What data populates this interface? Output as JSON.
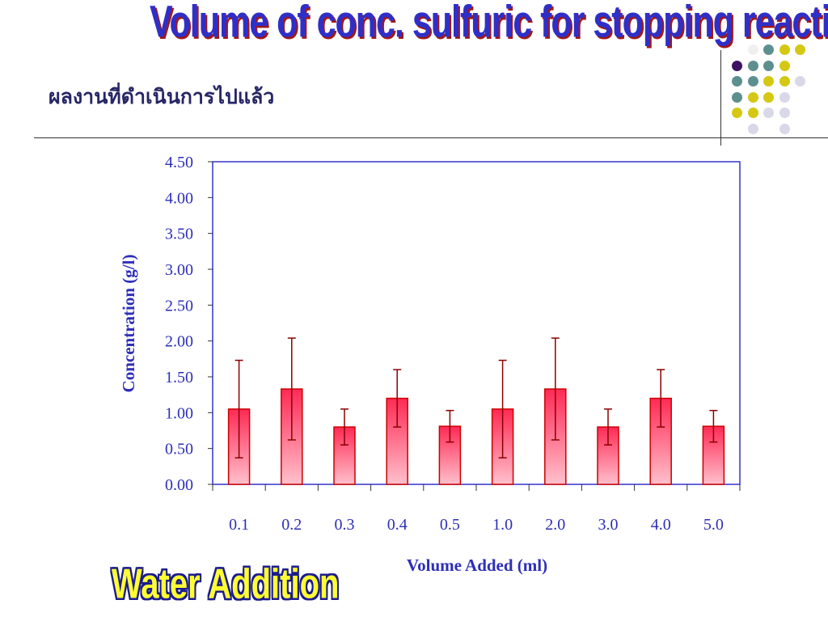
{
  "slide": {
    "title": "Volume of conc. sulfuric for stopping reaction",
    "subtitle": "ผลงานที่ดำเนินการไปแล้ว",
    "annotation": "Water Addition"
  },
  "colors": {
    "bar_fill_top": "#ff2a55",
    "bar_fill_bottom": "#ffc0cc",
    "bar_stroke": "#cc0000",
    "error_bar": "#8b0000",
    "axis_text": "#2e2eb8",
    "frame": "#3333cc",
    "title_text": "#2f2fc8",
    "title_shadow": "#a01818"
  },
  "decor_dots": [
    [
      null,
      "#f0f0f0",
      "#5e8f8f",
      "#d4c814",
      "#d4c814"
    ],
    [
      "#3d1260",
      "#5e8f8f",
      "#5e8f8f",
      "#d4c814",
      null
    ],
    [
      "#5e8f8f",
      "#5e8f8f",
      "#d4c814",
      "#d4c814",
      "#d8d8e8"
    ],
    [
      "#5e8f8f",
      "#d4c814",
      "#d4c814",
      "#d8d8e8",
      null
    ],
    [
      "#d4c814",
      "#d4c814",
      "#d8d8e8",
      "#d8d8e8",
      null
    ],
    [
      null,
      "#d8d8e8",
      null,
      "#d8d8e8",
      null
    ]
  ],
  "chart_data": {
    "type": "bar",
    "categories": [
      "0.1",
      "0.2",
      "0.3",
      "0.4",
      "0.5",
      "1.0",
      "2.0",
      "3.0",
      "4.0",
      "5.0"
    ],
    "values": [
      1.05,
      1.33,
      0.8,
      1.2,
      0.81,
      1.05,
      1.33,
      0.8,
      1.2,
      0.81
    ],
    "error": [
      0.68,
      0.71,
      0.25,
      0.4,
      0.22,
      0.68,
      0.71,
      0.25,
      0.4,
      0.22
    ],
    "xlabel": "Volume Added (ml)",
    "ylabel": "Concentration (g/l)",
    "ylim": [
      0,
      4.5
    ],
    "yticks": [
      "0.00",
      "0.50",
      "1.00",
      "1.50",
      "2.00",
      "2.50",
      "3.00",
      "3.50",
      "4.00",
      "4.50"
    ],
    "grid": false,
    "legend": false
  }
}
